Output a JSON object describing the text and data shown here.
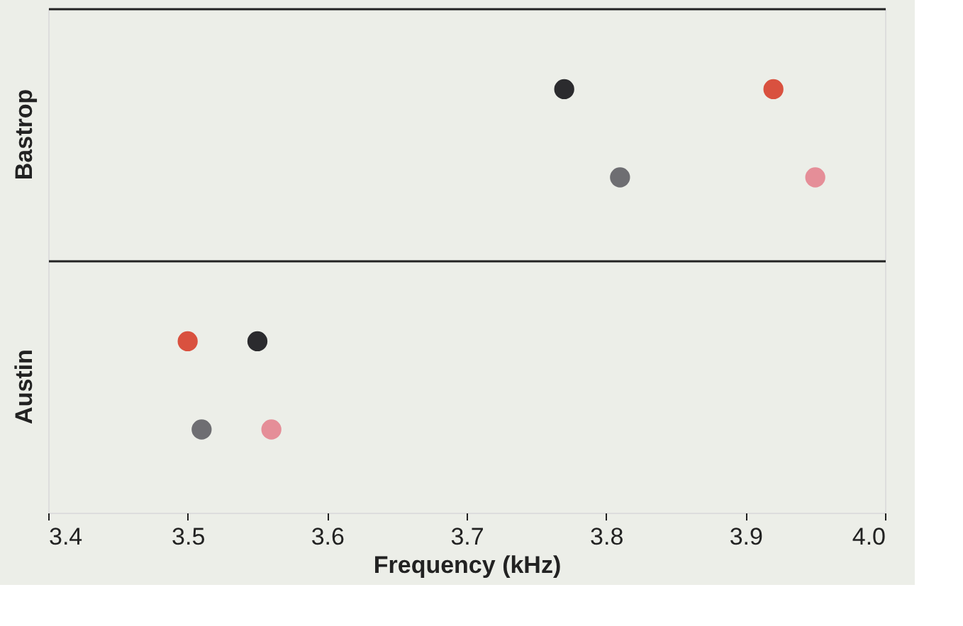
{
  "chart_data": {
    "type": "scatter",
    "orientation": "horizontal",
    "xlabel": "Frequency (kHz)",
    "categories": [
      "Bastrop",
      "Austin"
    ],
    "xlim": [
      3.4,
      4.0
    ],
    "xticks": [
      3.4,
      3.5,
      3.6,
      3.7,
      3.8,
      3.9,
      {
        "value": 4.0,
        "label": "4.0"
      }
    ],
    "marker": "circle",
    "grid": "y",
    "legend": false,
    "series": [
      {
        "color": "#2b2b2e",
        "values": [
          3.77,
          3.55
        ]
      },
      {
        "color": "#d9513f",
        "values": [
          3.92,
          3.5
        ]
      },
      {
        "color": "#6e6e72",
        "values": [
          3.81,
          3.51
        ]
      },
      {
        "color": "#e58e98",
        "values": [
          3.95,
          3.56
        ]
      }
    ]
  }
}
